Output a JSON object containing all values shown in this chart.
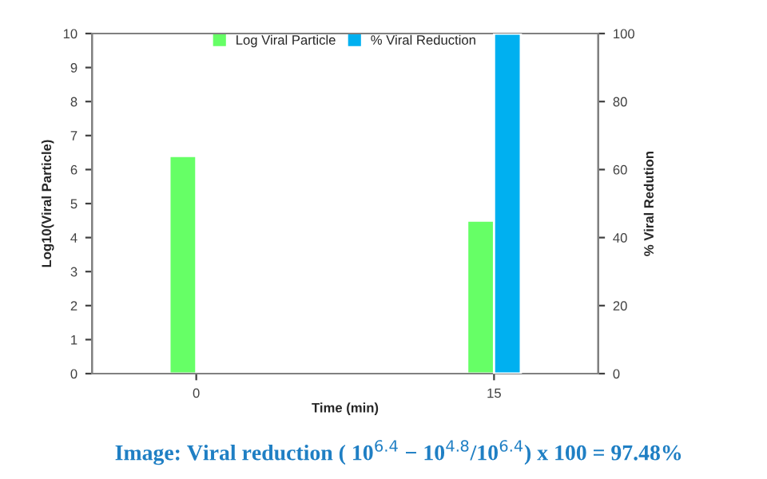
{
  "chart_data": {
    "type": "bar",
    "categories": [
      "0",
      "15"
    ],
    "xlabel": "Time (min)",
    "ylabel": "Log10(Viral Particle)",
    "y2label": "% Viral Redution",
    "series": [
      {
        "name": "Log Viral Particle",
        "color": "#66ff66",
        "values": [
          6.4,
          4.5
        ]
      },
      {
        "name": "% Viral Reduction",
        "color": "#00b0f0",
        "values": [
          null,
          100
        ],
        "axis": "y2"
      }
    ],
    "ylim": [
      0,
      10
    ],
    "yticks": [
      0,
      1,
      2,
      3,
      4,
      5,
      6,
      7,
      8,
      9,
      10
    ],
    "y2lim": [
      0,
      100
    ],
    "y2ticks": [
      0,
      20,
      40,
      60,
      80,
      100
    ],
    "grid": false,
    "legend": "top",
    "annotations": [
      "Image: Viral reduction ( 10$^{6.4}$ − 10$^{4.8}$/10$^{6.4}$) x 100 = 97.48%"
    ]
  }
}
